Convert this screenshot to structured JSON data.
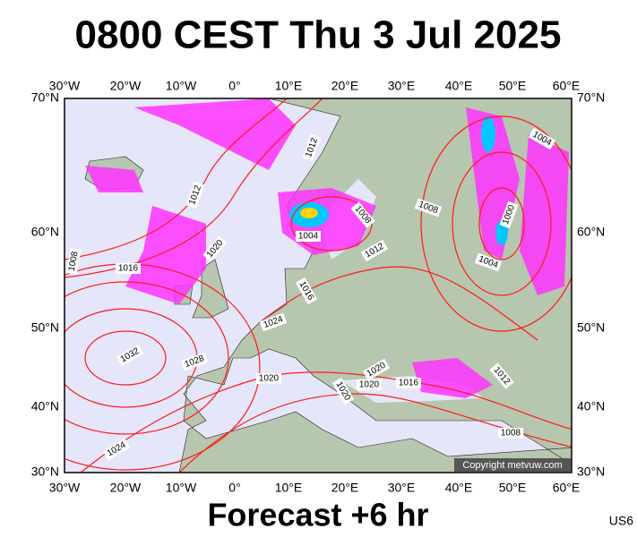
{
  "header": {
    "title": "0800 CEST Thu 3 Jul 2025"
  },
  "map": {
    "lon_labels": [
      "30°W",
      "20°W",
      "10°W",
      "0°",
      "10°E",
      "20°E",
      "30°E",
      "40°E",
      "50°E",
      "60°E"
    ],
    "lat_labels": [
      "70°N",
      "60°N",
      "50°N",
      "40°N",
      "30°N"
    ],
    "isobar_labels": [
      "1012",
      "1004",
      "1012",
      "1008",
      "1000",
      "1008",
      "1004",
      "1020",
      "1012",
      "1004",
      "1008",
      "1016",
      "1016",
      "1024",
      "1032",
      "1028",
      "1020",
      "1020",
      "1020",
      "1016",
      "1012",
      "1020",
      "1024",
      "1008"
    ],
    "copyright": "Copyright metvuw.com"
  },
  "footer": {
    "caption": "Forecast +6 hr",
    "code": "US6"
  }
}
